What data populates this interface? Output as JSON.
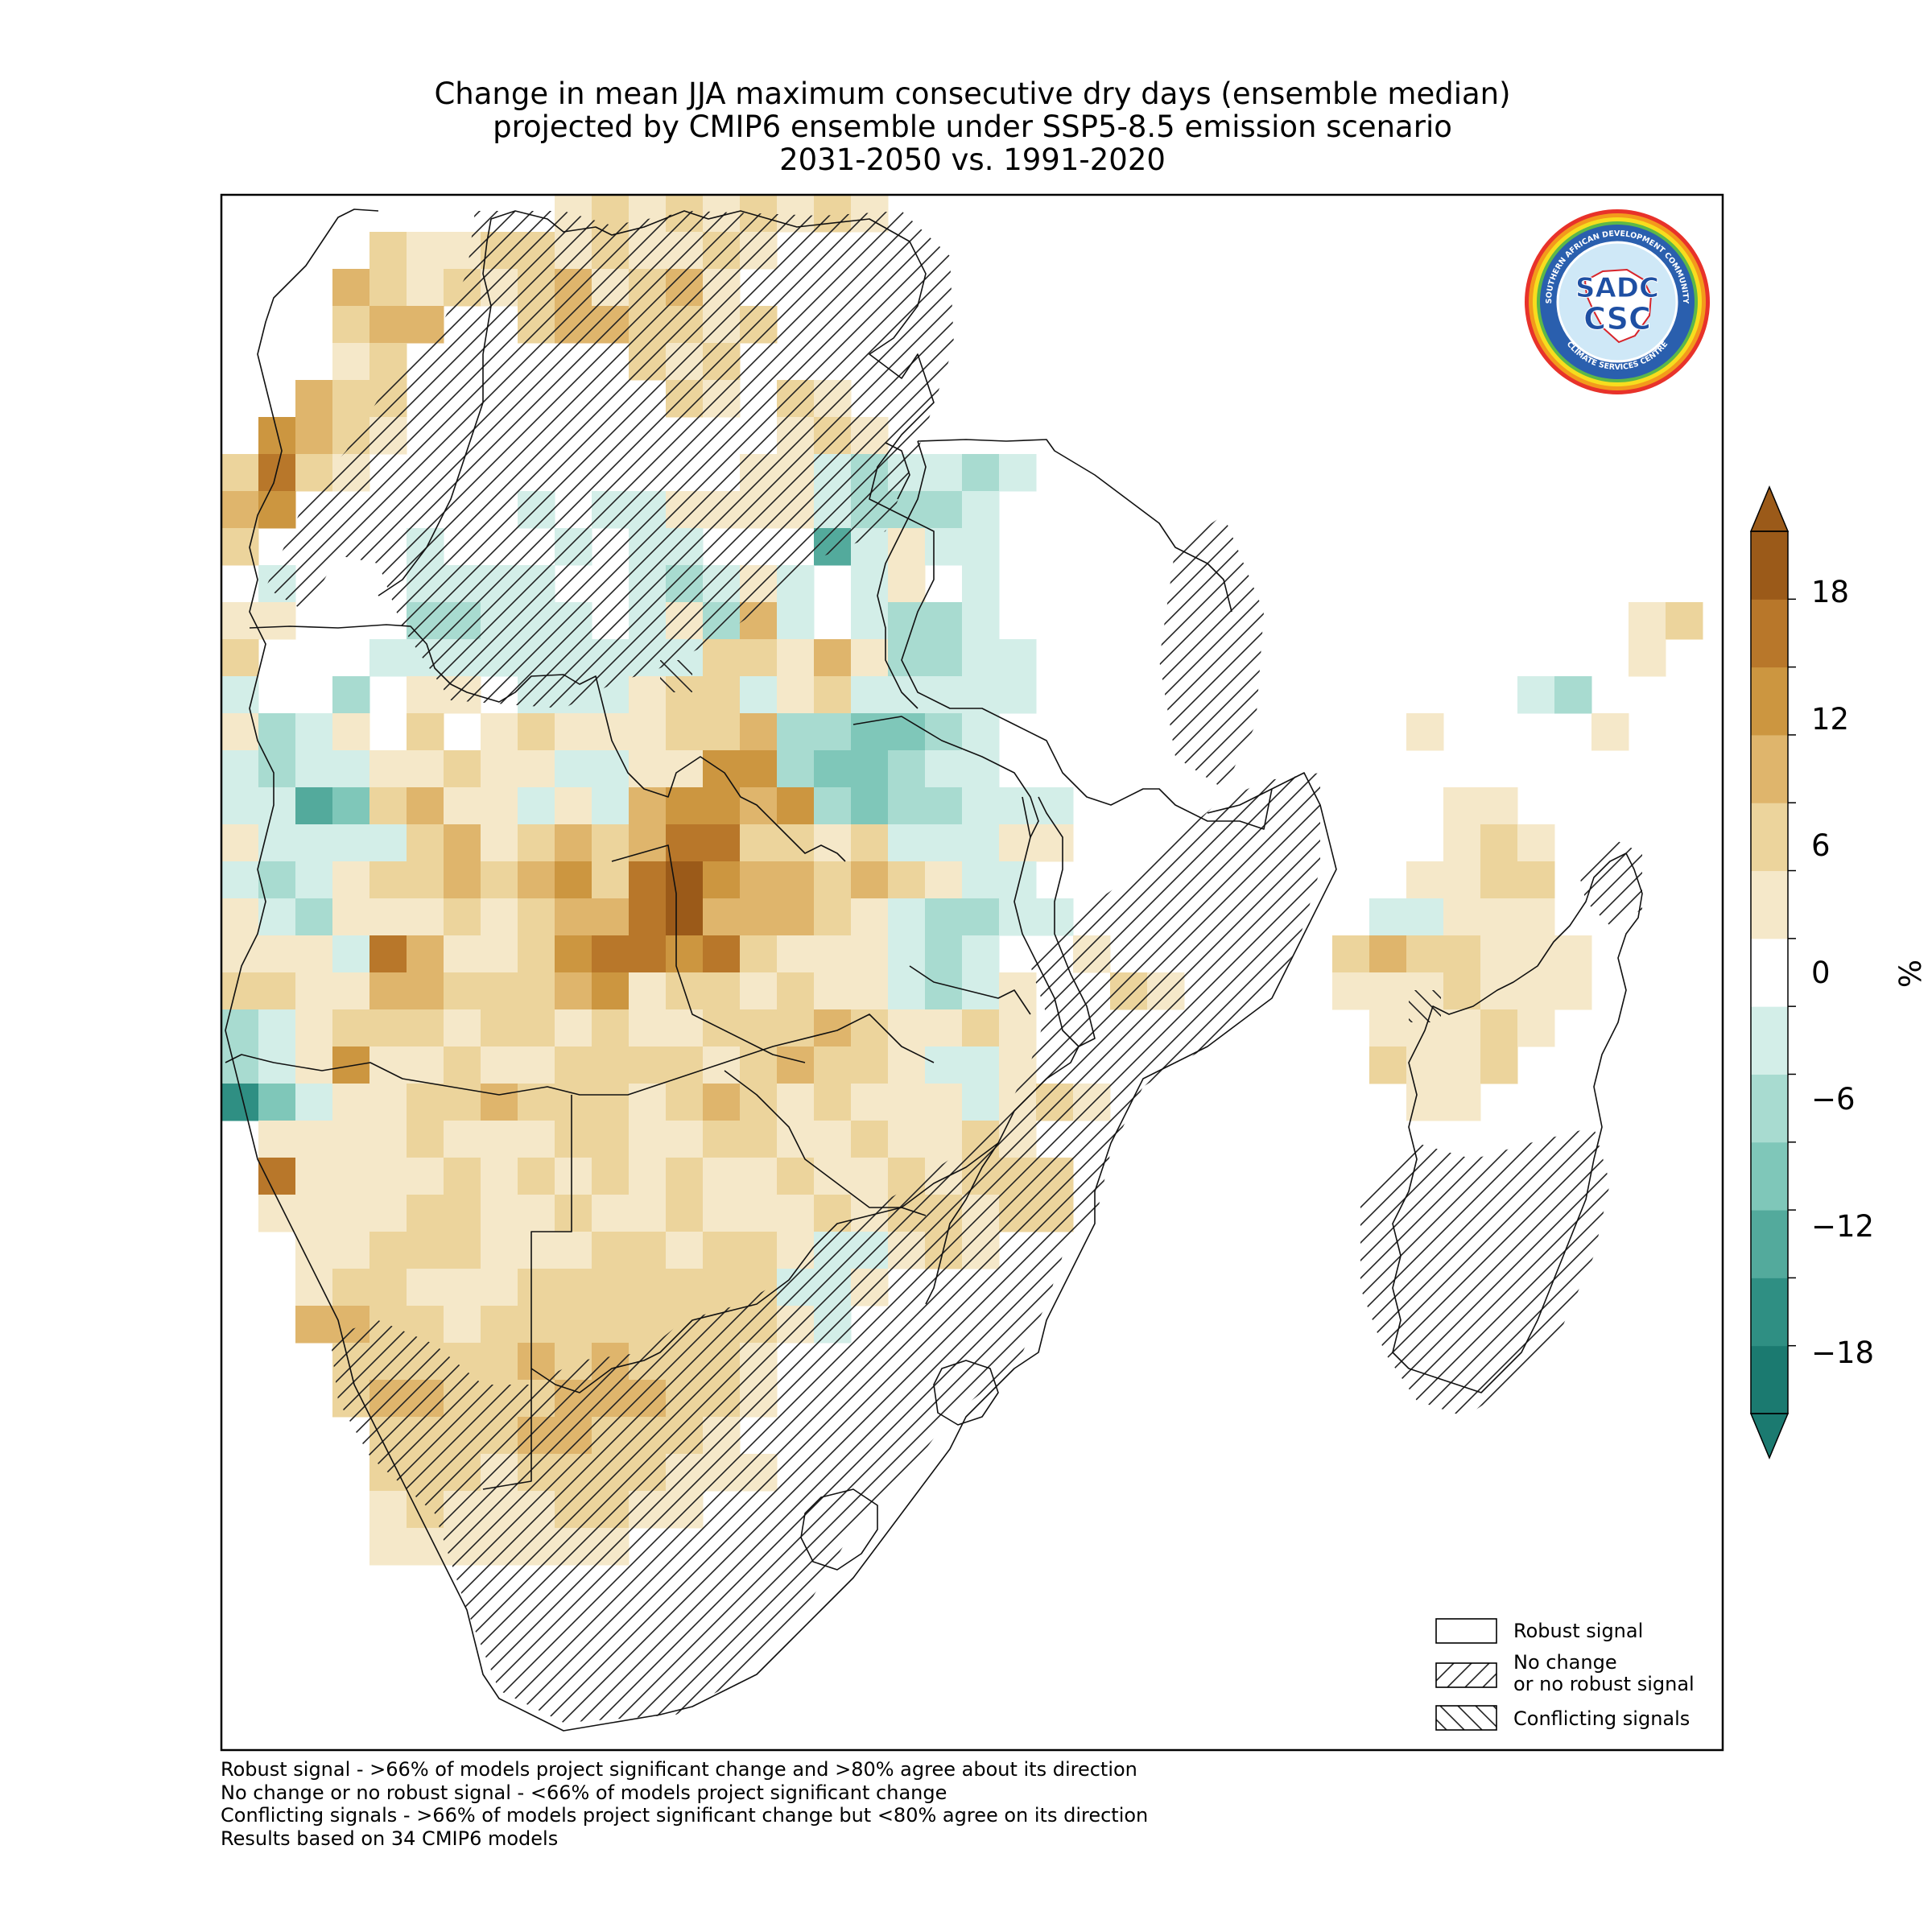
{
  "title": {
    "line1": "Change in mean JJA maximum consecutive dry days (ensemble median)",
    "line2": "projected by CMIP6 ensemble under SSP5-8.5 emission scenario",
    "line3": "2031-2050 vs. 1991-2020"
  },
  "colorbar": {
    "unit": "%",
    "tick_labels": [
      "18",
      "12",
      "6",
      "0",
      "−6",
      "−12",
      "−18"
    ],
    "colors": [
      "#1b7a70",
      "#2f8f83",
      "#53aa9c",
      "#7fc7b9",
      "#a8dbd0",
      "#d3eee8",
      "#ffffff",
      "#f5e8c9",
      "#ecd49c",
      "#dfb56c",
      "#cc9640",
      "#b8772a",
      "#9b5a19"
    ],
    "extend": "both"
  },
  "legend": {
    "robust": "Robust signal",
    "no_change_1": "No change",
    "no_change_2": "or no robust signal",
    "conflicting": "Conflicting signals"
  },
  "footnotes": [
    "Robust signal - >66% of models project significant change and >80% agree about its direction",
    "No change or no robust signal - <66% of models project significant change",
    "Conflicting signals - >66% of models project significant change but <80% agree on its direction",
    "Results based on 34 CMIP6 models"
  ],
  "logo": {
    "top_text": "SOUTHERN AFRICAN DEVELOPMENT COMMUNITY",
    "bottom_text": "CLIMATE SERVICES CENTRE",
    "mark1": "SADC",
    "mark2": "CSC"
  }
}
